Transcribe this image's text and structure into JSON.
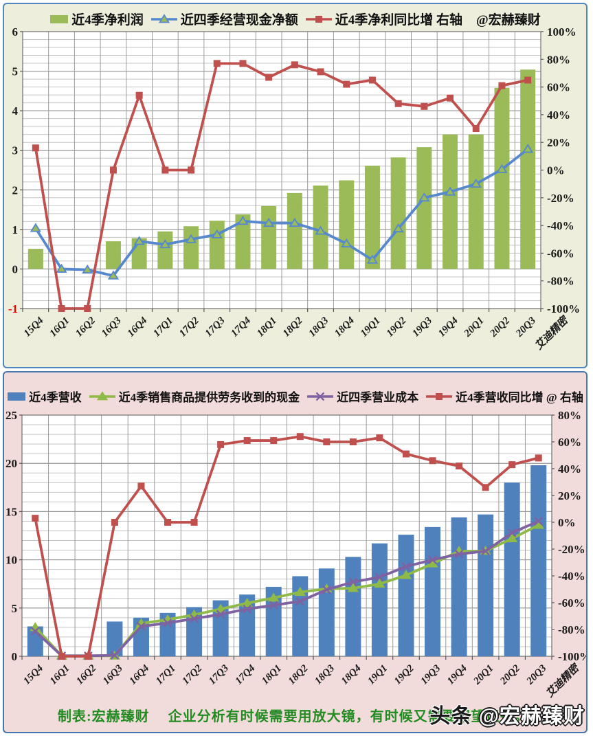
{
  "page": {
    "caption": "制表:宏赫臻财　 企业分析有时候需要用放大镜，有时候又需要用望远镜。",
    "caption_color": "#228B22",
    "watermark": {
      "prefix": "头条",
      "handle": "@宏赫臻财"
    }
  },
  "chart_data": [
    {
      "type": "bar",
      "panel": "top",
      "background": "#EDEFDC",
      "legend_watermark": "@宏赫臻财",
      "extra_category_label": "艾迪精密",
      "categories": [
        "15Q4",
        "16Q1",
        "16Q2",
        "16Q3",
        "16Q4",
        "17Q1",
        "17Q2",
        "17Q3",
        "17Q4",
        "18Q1",
        "18Q2",
        "18Q3",
        "18Q4",
        "19Q1",
        "19Q2",
        "19Q3",
        "19Q4",
        "20Q1",
        "20Q2",
        "20Q3"
      ],
      "left_axis": {
        "min": -1,
        "max": 6,
        "major": 1,
        "minor": 0.2,
        "ticks": [
          "6",
          "5",
          "4",
          "3",
          "2",
          "1",
          "0",
          "-1"
        ],
        "negative_color": "#FF0000"
      },
      "right_axis": {
        "min": -100,
        "max": 100,
        "major": 20,
        "ticks": [
          "100%",
          "80%",
          "60%",
          "40%",
          "20%",
          "0%",
          "-20%",
          "-40%",
          "-60%",
          "-80%",
          "-100%"
        ]
      },
      "series": [
        {
          "name": "近4季净利润",
          "type": "bar",
          "axis": "left",
          "color": "#9BBB59",
          "values": [
            0.51,
            0,
            0,
            0.7,
            0.78,
            0.95,
            1.08,
            1.22,
            1.38,
            1.59,
            1.92,
            2.11,
            2.24,
            2.61,
            2.82,
            3.08,
            3.4,
            3.4,
            4.58,
            5.04
          ]
        },
        {
          "name": "近四季经营现金净额",
          "type": "line",
          "marker": "triangle",
          "marker_fill": "#9BBB59",
          "axis": "left",
          "color": "#5588CC",
          "values": [
            1.03,
            0.0,
            -0.02,
            -0.17,
            0.7,
            0.62,
            0.75,
            0.87,
            1.21,
            1.16,
            1.16,
            0.96,
            0.64,
            0.23,
            1.02,
            1.8,
            1.95,
            2.15,
            2.52,
            3.03
          ]
        },
        {
          "name": "近4季净利同比增 右轴",
          "type": "line",
          "marker": "square",
          "axis": "right",
          "color": "#C0504D",
          "values": [
            16,
            -100,
            -100,
            0,
            54,
            0,
            0,
            77,
            77,
            67,
            76,
            71,
            62,
            65,
            48,
            46,
            52,
            30,
            61,
            65
          ]
        }
      ]
    },
    {
      "type": "bar",
      "panel": "bottom",
      "background": "#F2DCDB",
      "legend_watermark": "",
      "extra_category_label": "艾迪精密",
      "categories": [
        "15Q4",
        "16Q1",
        "16Q2",
        "16Q3",
        "16Q4",
        "17Q1",
        "17Q2",
        "17Q3",
        "17Q4",
        "18Q1",
        "18Q2",
        "18Q3",
        "18Q4",
        "19Q1",
        "19Q2",
        "19Q3",
        "19Q4",
        "20Q1",
        "20Q2",
        "20Q3"
      ],
      "left_axis": {
        "min": 0,
        "max": 25,
        "major": 5,
        "minor": 1,
        "ticks": [
          "25",
          "20",
          "15",
          "10",
          "5",
          "0"
        ],
        "negative_color": "#FF0000"
      },
      "right_axis": {
        "min": -100,
        "max": 80,
        "major": 20,
        "ticks": [
          "80%",
          "60%",
          "40%",
          "20%",
          "0%",
          "-20%",
          "-40%",
          "-60%",
          "-80%",
          "-100%"
        ]
      },
      "series": [
        {
          "name": "近4季营收",
          "type": "bar",
          "axis": "left",
          "color": "#4F81BD",
          "values": [
            3.1,
            0,
            0,
            3.6,
            4.0,
            4.5,
            5.1,
            5.8,
            6.4,
            7.2,
            8.3,
            9.1,
            10.3,
            11.7,
            12.6,
            13.4,
            14.4,
            14.7,
            18.0,
            19.8
          ]
        },
        {
          "name": "近4季销售商品提供劳务收到的现金",
          "type": "line",
          "marker": "triangle",
          "marker_fill": "#8FBA48",
          "axis": "left",
          "color": "#8FBA48",
          "values": [
            3.0,
            0.05,
            0.05,
            0.05,
            3.4,
            3.8,
            4.3,
            4.9,
            5.5,
            6.05,
            6.65,
            7.0,
            7.05,
            7.5,
            8.4,
            9.6,
            10.9,
            10.9,
            12.2,
            13.6
          ]
        },
        {
          "name": "近四季营业成本",
          "type": "line",
          "marker": "x",
          "axis": "left",
          "color": "#7E62A1",
          "values": [
            2.6,
            0.05,
            0.05,
            0.1,
            3.1,
            3.45,
            3.9,
            4.35,
            4.9,
            5.3,
            5.7,
            6.9,
            7.7,
            8.2,
            9.3,
            10.0,
            10.6,
            10.9,
            12.8,
            14.0
          ]
        },
        {
          "name": "近4季营收同比增 @ 右轴",
          "type": "line",
          "marker": "square",
          "axis": "right",
          "color": "#C0504D",
          "values": [
            3,
            -100,
            -100,
            0,
            27,
            0,
            0,
            58,
            61,
            61,
            64,
            60,
            60,
            63,
            51,
            46,
            42,
            26,
            43,
            48
          ]
        }
      ]
    }
  ]
}
